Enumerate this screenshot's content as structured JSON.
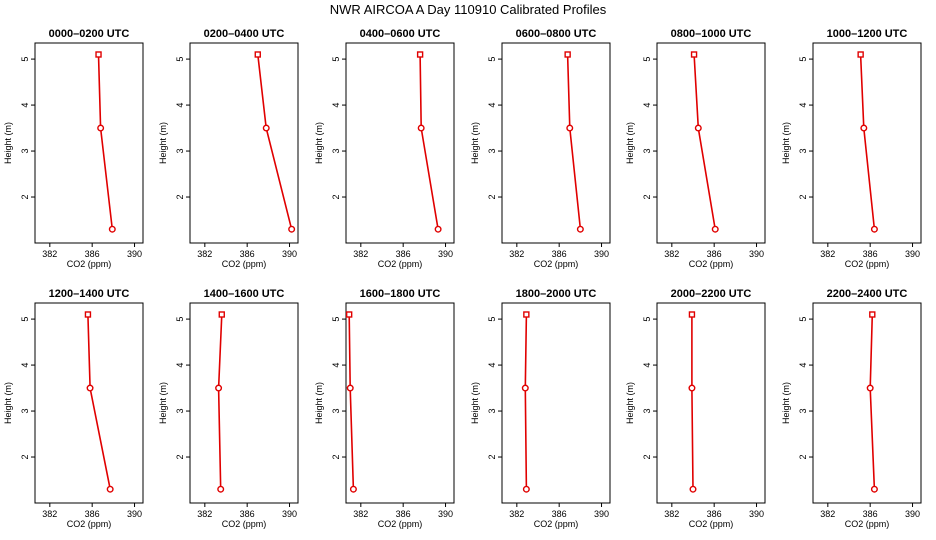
{
  "figure": {
    "title": "NWR AIRCOA A  Day 110910  Calibrated Profiles"
  },
  "colors": {
    "series": "#e00000",
    "axis": "#000000",
    "background": "#ffffff"
  },
  "chart_data": [
    {
      "type": "line",
      "title": "0000–0200 UTC",
      "xlabel": "CO2 (ppm)",
      "ylabel": "Height (m)",
      "xlim": [
        380.6,
        390.8
      ],
      "ylim": [
        1.0,
        5.35
      ],
      "xticks": [
        382,
        386,
        390
      ],
      "xtick_labels": [
        "382",
        "386",
        "390"
      ],
      "yticks": [
        2,
        3,
        4,
        5
      ],
      "ytick_labels": [
        "2",
        "3",
        "4",
        "5"
      ],
      "heights": [
        5.1,
        3.5,
        1.3
      ],
      "co2": [
        386.6,
        386.8,
        387.9
      ]
    },
    {
      "type": "line",
      "title": "0200–0400 UTC",
      "xlabel": "CO2 (ppm)",
      "ylabel": "Height (m)",
      "xlim": [
        380.6,
        390.8
      ],
      "ylim": [
        1.0,
        5.35
      ],
      "xticks": [
        382,
        386,
        390
      ],
      "xtick_labels": [
        "382",
        "386",
        "390"
      ],
      "yticks": [
        2,
        3,
        4,
        5
      ],
      "ytick_labels": [
        "2",
        "3",
        "4",
        "5"
      ],
      "heights": [
        5.1,
        3.5,
        1.3
      ],
      "co2": [
        387.0,
        387.8,
        390.2
      ]
    },
    {
      "type": "line",
      "title": "0400–0600 UTC",
      "xlabel": "CO2 (ppm)",
      "ylabel": "Height (m)",
      "xlim": [
        380.6,
        390.8
      ],
      "ylim": [
        1.0,
        5.35
      ],
      "xticks": [
        382,
        386,
        390
      ],
      "xtick_labels": [
        "382",
        "386",
        "390"
      ],
      "yticks": [
        2,
        3,
        4,
        5
      ],
      "ytick_labels": [
        "2",
        "3",
        "4",
        "5"
      ],
      "heights": [
        5.1,
        3.5,
        1.3
      ],
      "co2": [
        387.6,
        387.7,
        389.3
      ]
    },
    {
      "type": "line",
      "title": "0600–0800 UTC",
      "xlabel": "CO2 (ppm)",
      "ylabel": "Height (m)",
      "xlim": [
        380.6,
        390.8
      ],
      "ylim": [
        1.0,
        5.35
      ],
      "xticks": [
        382,
        386,
        390
      ],
      "xtick_labels": [
        "382",
        "386",
        "390"
      ],
      "yticks": [
        2,
        3,
        4,
        5
      ],
      "ytick_labels": [
        "2",
        "3",
        "4",
        "5"
      ],
      "heights": [
        5.1,
        3.5,
        1.3
      ],
      "co2": [
        386.8,
        387.0,
        388.0
      ]
    },
    {
      "type": "line",
      "title": "0800–1000 UTC",
      "xlabel": "CO2 (ppm)",
      "ylabel": "Height (m)",
      "xlim": [
        380.6,
        390.8
      ],
      "ylim": [
        1.0,
        5.35
      ],
      "xticks": [
        382,
        386,
        390
      ],
      "xtick_labels": [
        "382",
        "386",
        "390"
      ],
      "yticks": [
        2,
        3,
        4,
        5
      ],
      "ytick_labels": [
        "2",
        "3",
        "4",
        "5"
      ],
      "heights": [
        5.1,
        3.5,
        1.3
      ],
      "co2": [
        384.1,
        384.5,
        386.1
      ]
    },
    {
      "type": "line",
      "title": "1000–1200 UTC",
      "xlabel": "CO2 (ppm)",
      "ylabel": "Height (m)",
      "xlim": [
        380.6,
        390.8
      ],
      "ylim": [
        1.0,
        5.35
      ],
      "xticks": [
        382,
        386,
        390
      ],
      "xtick_labels": [
        "382",
        "386",
        "390"
      ],
      "yticks": [
        2,
        3,
        4,
        5
      ],
      "ytick_labels": [
        "2",
        "3",
        "4",
        "5"
      ],
      "heights": [
        5.1,
        3.5,
        1.3
      ],
      "co2": [
        385.1,
        385.4,
        386.4
      ]
    },
    {
      "type": "line",
      "title": "1200–1400 UTC",
      "xlabel": "CO2 (ppm)",
      "ylabel": "Height (m)",
      "xlim": [
        380.6,
        390.8
      ],
      "ylim": [
        1.0,
        5.35
      ],
      "xticks": [
        382,
        386,
        390
      ],
      "xtick_labels": [
        "382",
        "386",
        "390"
      ],
      "yticks": [
        2,
        3,
        4,
        5
      ],
      "ytick_labels": [
        "2",
        "3",
        "4",
        "5"
      ],
      "heights": [
        5.1,
        3.5,
        1.3
      ],
      "co2": [
        385.6,
        385.8,
        387.7
      ]
    },
    {
      "type": "line",
      "title": "1400–1600 UTC",
      "xlabel": "CO2 (ppm)",
      "ylabel": "Height (m)",
      "xlim": [
        380.6,
        390.8
      ],
      "ylim": [
        1.0,
        5.35
      ],
      "xticks": [
        382,
        386,
        390
      ],
      "xtick_labels": [
        "382",
        "386",
        "390"
      ],
      "yticks": [
        2,
        3,
        4,
        5
      ],
      "ytick_labels": [
        "2",
        "3",
        "4",
        "5"
      ],
      "heights": [
        5.1,
        3.5,
        1.3
      ],
      "co2": [
        383.6,
        383.3,
        383.5
      ]
    },
    {
      "type": "line",
      "title": "1600–1800 UTC",
      "xlabel": "CO2 (ppm)",
      "ylabel": "Height (m)",
      "xlim": [
        380.6,
        390.8
      ],
      "ylim": [
        1.0,
        5.35
      ],
      "xticks": [
        382,
        386,
        390
      ],
      "xtick_labels": [
        "382",
        "386",
        "390"
      ],
      "yticks": [
        2,
        3,
        4,
        5
      ],
      "ytick_labels": [
        "2",
        "3",
        "4",
        "5"
      ],
      "heights": [
        5.1,
        3.5,
        1.3
      ],
      "co2": [
        380.9,
        381.0,
        381.3
      ]
    },
    {
      "type": "line",
      "title": "1800–2000 UTC",
      "xlabel": "CO2 (ppm)",
      "ylabel": "Height (m)",
      "xlim": [
        380.6,
        390.8
      ],
      "ylim": [
        1.0,
        5.35
      ],
      "xticks": [
        382,
        386,
        390
      ],
      "xtick_labels": [
        "382",
        "386",
        "390"
      ],
      "yticks": [
        2,
        3,
        4,
        5
      ],
      "ytick_labels": [
        "2",
        "3",
        "4",
        "5"
      ],
      "heights": [
        5.1,
        3.5,
        1.3
      ],
      "co2": [
        382.9,
        382.8,
        382.9
      ]
    },
    {
      "type": "line",
      "title": "2000–2200 UTC",
      "xlabel": "CO2 (ppm)",
      "ylabel": "Height (m)",
      "xlim": [
        380.6,
        390.8
      ],
      "ylim": [
        1.0,
        5.35
      ],
      "xticks": [
        382,
        386,
        390
      ],
      "xtick_labels": [
        "382",
        "386",
        "390"
      ],
      "yticks": [
        2,
        3,
        4,
        5
      ],
      "ytick_labels": [
        "2",
        "3",
        "4",
        "5"
      ],
      "heights": [
        5.1,
        3.5,
        1.3
      ],
      "co2": [
        383.9,
        383.9,
        384.0
      ]
    },
    {
      "type": "line",
      "title": "2200–2400 UTC",
      "xlabel": "CO2 (ppm)",
      "ylabel": "Height (m)",
      "xlim": [
        380.6,
        390.8
      ],
      "ylim": [
        1.0,
        5.35
      ],
      "xticks": [
        382,
        386,
        390
      ],
      "xtick_labels": [
        "382",
        "386",
        "390"
      ],
      "yticks": [
        2,
        3,
        4,
        5
      ],
      "ytick_labels": [
        "2",
        "3",
        "4",
        "5"
      ],
      "heights": [
        5.1,
        3.5,
        1.3
      ],
      "co2": [
        386.2,
        386.0,
        386.4
      ]
    }
  ]
}
